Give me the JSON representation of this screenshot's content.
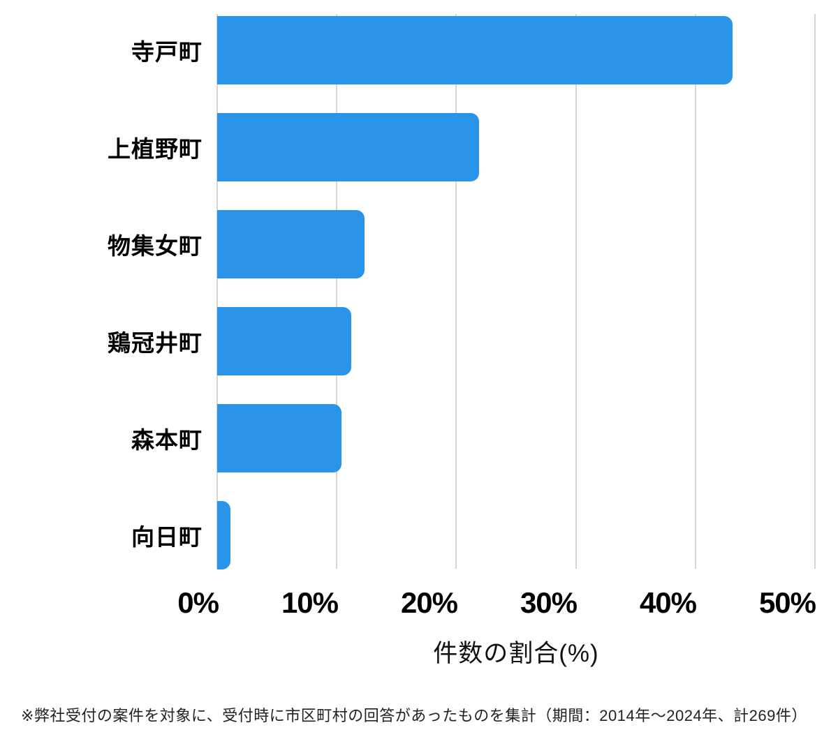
{
  "chart_data": {
    "type": "bar",
    "orientation": "horizontal",
    "title": "",
    "categories": [
      "寺戸町",
      "上植野町",
      "物集女町",
      "鶏冠井町",
      "森本町",
      "向日町"
    ],
    "values": [
      43.1,
      21.9,
      12.3,
      11.2,
      10.4,
      1.1
    ],
    "unit": "%",
    "xlabel": "件数の割合(%)",
    "xlim": [
      0,
      50
    ],
    "x_ticks": [
      "0%",
      "10%",
      "20%",
      "30%",
      "40%",
      "50%"
    ],
    "grid": "vertical",
    "legend_position": "none",
    "bar_color": "#2a95e8",
    "gridline_color": "#d6d6d6",
    "footnote": "※弊社受付の案件を対象に、受付時に市区町村の回答があったものを集計（期間：2014年～2024年、計269件）"
  }
}
